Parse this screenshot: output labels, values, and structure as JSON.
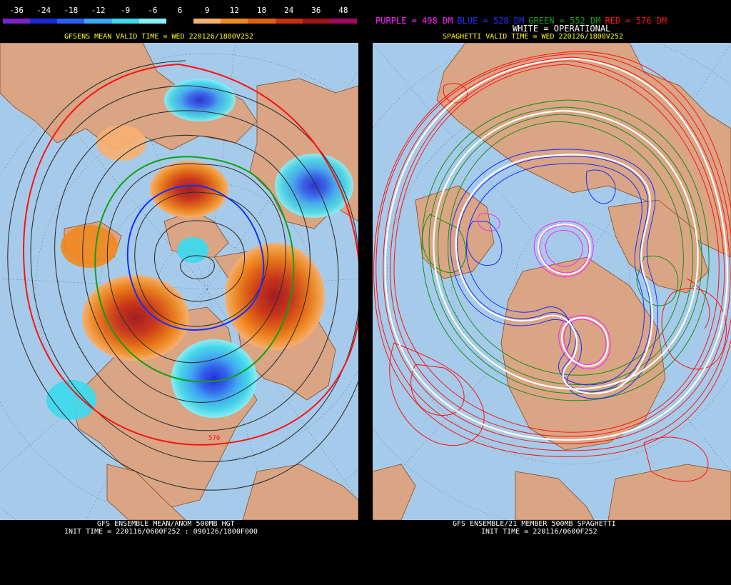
{
  "left": {
    "colorbar": {
      "labels": [
        "-36",
        "-24",
        "-18",
        "-12",
        "-9",
        "-6",
        "6",
        "9",
        "12",
        "18",
        "24",
        "36",
        "48"
      ],
      "colors": [
        "#7a22c8",
        "#1a2ad8",
        "#2a5ef0",
        "#3aa8f8",
        "#40d8ec",
        "#88f0f8",
        "#000000",
        "#f8b070",
        "#f08a20",
        "#e06010",
        "#c83014",
        "#a01418",
        "#a00860"
      ]
    },
    "header": "GFSENS MEAN VALID TIME = WED 220126/1800V252",
    "contour_label": "570",
    "footer": {
      "line1": "GFS ENSEMBLE MEAN/ANOM 500MB HGT",
      "line2": "INIT TIME = 220116/0600F252 : 090126/1800F000"
    }
  },
  "right": {
    "legend": [
      {
        "text": "PURPLE = 498 DM",
        "color": "#ff20ff"
      },
      {
        "text": "BLUE = 528 DM",
        "color": "#2030ff"
      },
      {
        "text": "GREEN = 552 DM",
        "color": "#10a010"
      },
      {
        "text": "RED = 576 DM",
        "color": "#ff1010"
      }
    ],
    "white_label": "WHITE = OPERATIONAL",
    "header": "SPAGHETTI VALID TIME = WED 220126/1800V252",
    "footer": {
      "line1": "GFS ENSEMBLE/21 MEMBER 500MB SPAGHETTI",
      "line2": "INIT TIME = 220116/0600F252"
    }
  },
  "colors": {
    "ocean": "#a6cbea",
    "land": "#d9a585",
    "border": "#8a4a20"
  }
}
